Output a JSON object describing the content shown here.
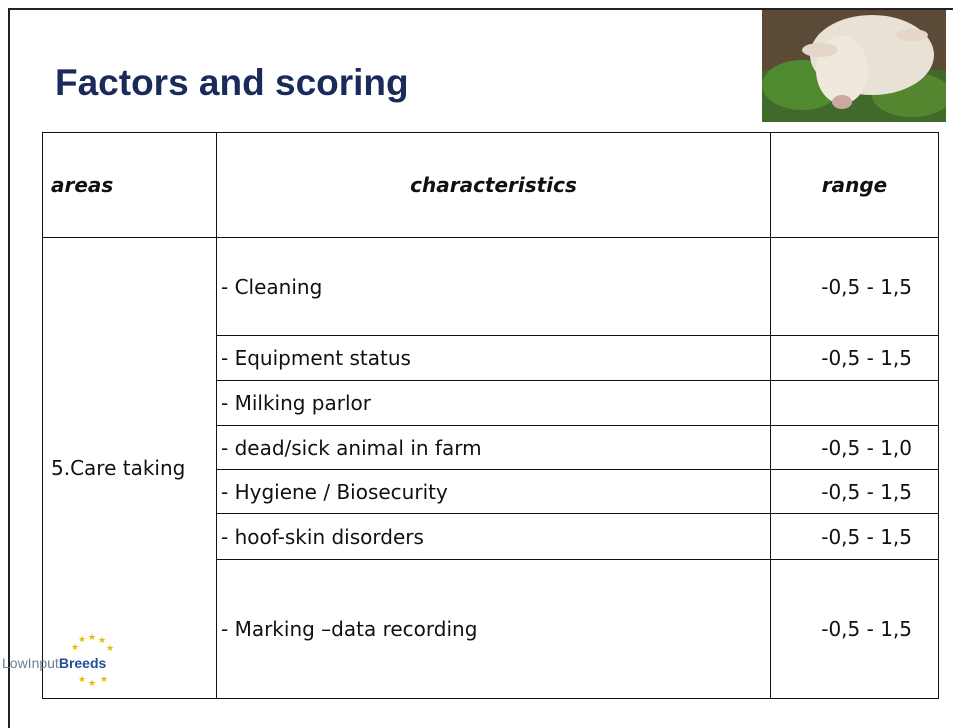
{
  "header": {
    "title": "Factors and scoring"
  },
  "table": {
    "columns": [
      "areas",
      "characteristics",
      "range"
    ],
    "area": "5.Care taking",
    "rows": [
      {
        "characteristic": "- Cleaning",
        "range": "-0,5 - 1,5"
      },
      {
        "characteristic": "- Equipment status",
        "range": "-0,5 - 1,5"
      },
      {
        "characteristic": "- Milking parlor"
      },
      {
        "characteristic": "- dead/sick animal in farm",
        "range": "-0,5 - 1,0"
      },
      {
        "characteristic": "- Hygiene / Biosecurity",
        "range": "-0,5 - 1,5"
      },
      {
        "characteristic": "- hoof-skin disorders",
        "range": "-0,5 - 1,5"
      },
      {
        "characteristic": "- Marking –data recording",
        "range": "-0,5 - 1,5"
      }
    ]
  },
  "logo": {
    "text_light": "LowInput",
    "text_bold": "Breeds"
  }
}
